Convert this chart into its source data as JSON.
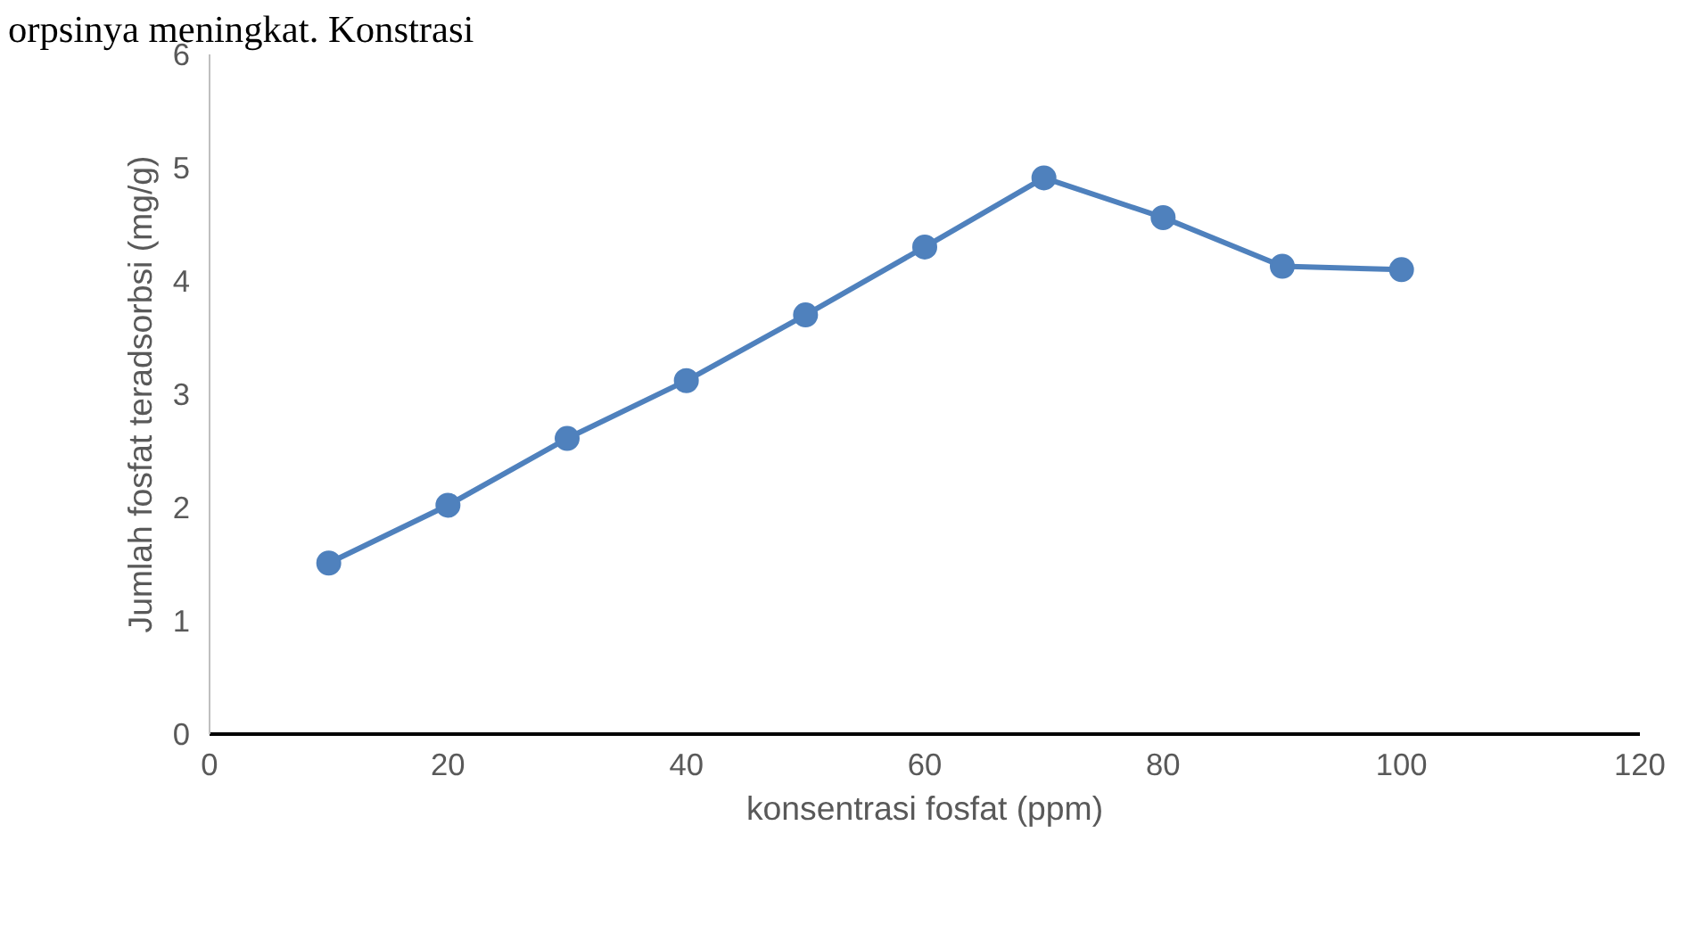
{
  "chart_data": {
    "type": "line",
    "xlabel": "konsentrasi fosfat (ppm)",
    "ylabel": "Jumlah fosfat teradsorbsi (mg/g)",
    "x": [
      10,
      20,
      30,
      40,
      50,
      60,
      70,
      80,
      90,
      100
    ],
    "series": [
      {
        "color": "#4f81bd",
        "values": [
          1.51,
          2.02,
          2.61,
          3.12,
          3.7,
          4.3,
          4.91,
          4.56,
          4.13,
          4.1
        ]
      }
    ],
    "xlim": [
      0,
      120
    ],
    "xticks": [
      0,
      20,
      40,
      60,
      80,
      100,
      120
    ],
    "ylim": [
      0,
      6
    ],
    "yticks": [
      0,
      1,
      2,
      3,
      4,
      5,
      6
    ],
    "grid": false,
    "marker": "circle",
    "line_style": "solid",
    "annotations": [
      "orpsinya meningkat. Konstrasi"
    ]
  }
}
